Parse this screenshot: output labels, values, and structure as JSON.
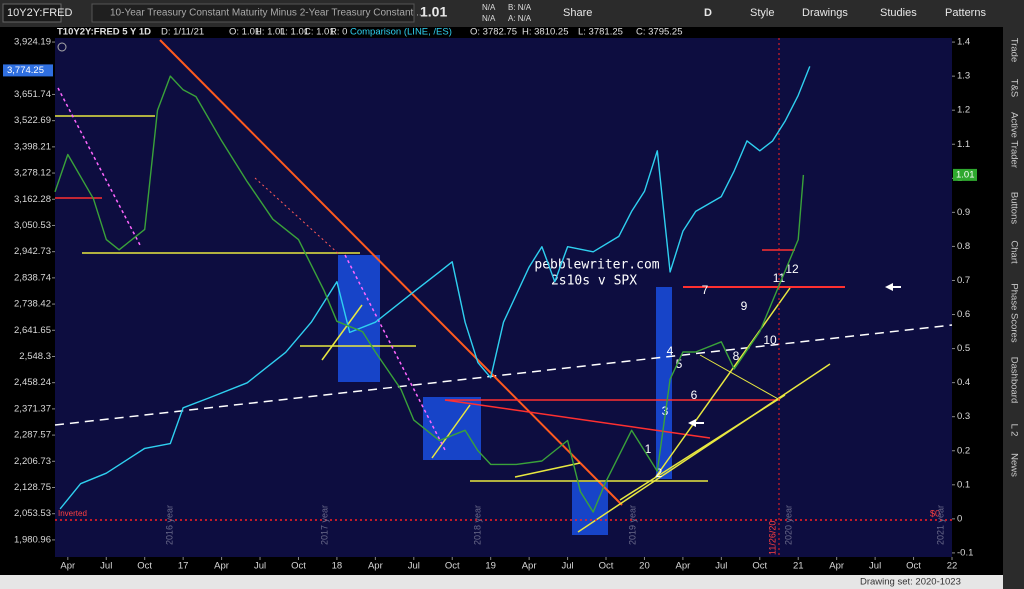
{
  "toolbar": {
    "symbol": "10Y2Y:FRED",
    "description": "10-Year Treasury Constant Maturity Minus 2-Year Treasury Constant ...",
    "price": "1.01",
    "quote": [
      "N/A",
      "N/A",
      "B: N/A",
      "A: N/A"
    ],
    "buttons": [
      "Share",
      "D",
      "Style",
      "Drawings",
      "Studies",
      "Patterns"
    ]
  },
  "chart_header": {
    "symbol": "T10Y2Y:FRED 5 Y 1D",
    "fields": [
      "D: 1/11/21",
      "O: 1.01",
      "H: 1.01",
      "L: 1.01",
      "C: 1.01",
      "R: 0"
    ],
    "comparison": "Comparison (LINE, /ES)",
    "comparison_fields": [
      "O: 3782.75",
      "H: 3810.25",
      "L: 3781.25",
      "C: 3795.25"
    ]
  },
  "sidebar": [
    "Trade",
    "T&S",
    "Active Trader",
    "Buttons",
    "Chart",
    "Phase Scores",
    "Dashboard",
    "L 2",
    "News"
  ],
  "footer": "Drawing set: 2020-1023",
  "chart_data": {
    "type": "line",
    "y_scale": "log",
    "xlim": [
      2,
      72
    ],
    "xticks": [
      {
        "value": 3,
        "label": "Apr"
      },
      {
        "value": 6,
        "label": "Jul"
      },
      {
        "value": 9,
        "label": "Oct"
      },
      {
        "value": 12,
        "label": "17"
      },
      {
        "value": 15,
        "label": "Apr"
      },
      {
        "value": 18,
        "label": "Jul"
      },
      {
        "value": 21,
        "label": "Oct"
      },
      {
        "value": 24,
        "label": "18"
      },
      {
        "value": 27,
        "label": "Apr"
      },
      {
        "value": 30,
        "label": "Jul"
      },
      {
        "value": 33,
        "label": "Oct"
      },
      {
        "value": 36,
        "label": "19"
      },
      {
        "value": 39,
        "label": "Apr"
      },
      {
        "value": 42,
        "label": "Jul"
      },
      {
        "value": 45,
        "label": "Oct"
      },
      {
        "value": 48,
        "label": "20"
      },
      {
        "value": 51,
        "label": "Apr"
      },
      {
        "value": 54,
        "label": "Jul"
      },
      {
        "value": 57,
        "label": "Oct"
      },
      {
        "value": 60,
        "label": "21"
      },
      {
        "value": 63,
        "label": "Apr"
      },
      {
        "value": 66,
        "label": "Jul"
      },
      {
        "value": 69,
        "label": "Oct"
      },
      {
        "value": 72,
        "label": "22"
      }
    ],
    "ylim": [
      1935,
      3946
    ],
    "yticks": [
      {
        "value": 3924.19,
        "label": "3,924.19"
      },
      {
        "value": 3651.74,
        "label": "3,651.74"
      },
      {
        "value": 3522.69,
        "label": "3,522.69"
      },
      {
        "value": 3398.21,
        "label": "3,398.21"
      },
      {
        "value": 3278.12,
        "label": "3,278.12"
      },
      {
        "value": 3162.28,
        "label": "3,162.28"
      },
      {
        "value": 3050.53,
        "label": "3,050.53"
      },
      {
        "value": 2942.73,
        "label": "2,942.73"
      },
      {
        "value": 2838.74,
        "label": "2,838.74"
      },
      {
        "value": 2738.42,
        "label": "2,738.42"
      },
      {
        "value": 2641.65,
        "label": "2,641.65"
      },
      {
        "value": 2548.3,
        "label": "2,548.3"
      },
      {
        "value": 2458.24,
        "label": "2,458.24"
      },
      {
        "value": 2371.37,
        "label": "2,371.37"
      },
      {
        "value": 2287.57,
        "label": "2,287.57"
      },
      {
        "value": 2206.73,
        "label": "2,206.73"
      },
      {
        "value": 2128.75,
        "label": "2,128.75"
      },
      {
        "value": 2053.53,
        "label": "2,053.53"
      },
      {
        "value": 1980.96,
        "label": "1,980.96"
      }
    ],
    "y2lim": [
      -0.112,
      1.412
    ],
    "y2ticks": [
      1.4,
      1.3,
      1.2,
      1.1,
      1,
      0.9,
      0.8,
      0.7,
      0.6,
      0.5,
      0.4,
      0.3,
      0.2,
      0.1,
      0,
      -0.1
    ],
    "current_labels": [
      {
        "value": 3774.25,
        "label": "3,774.25",
        "axis": "y",
        "color": "#2f6fe0"
      },
      {
        "value": 1.01,
        "label": "1.01",
        "axis": "y2",
        "color": "#2ea82e"
      }
    ],
    "series": [
      {
        "color": "#2fd0f0",
        "axis": "y",
        "x": [
          2.4,
          4,
          6,
          9,
          11,
          12,
          14,
          17,
          20,
          22,
          24,
          25,
          27,
          30,
          32,
          33,
          34,
          35,
          36,
          37,
          39,
          40,
          41,
          42,
          44,
          46,
          47,
          48,
          49,
          50,
          51,
          52,
          54,
          55,
          56,
          57,
          58,
          59,
          60,
          60.9
        ],
        "values": [
          2067,
          2140,
          2171,
          2246,
          2261,
          2375,
          2407,
          2458,
          2563,
          2671,
          2824,
          2634,
          2671,
          2785,
          2862,
          2902,
          2671,
          2527,
          2475,
          2671,
          2881,
          2963,
          2824,
          2963,
          2942,
          3005,
          3110,
          3197,
          3380,
          2862,
          3026,
          3110,
          3174,
          3288,
          3426,
          3380,
          3426,
          3523,
          3647,
          3795
        ]
      },
      {
        "color": "#3aa23a",
        "axis": "y2",
        "x": [
          2,
          3,
          5,
          6,
          7,
          9,
          10,
          11,
          12,
          13,
          15,
          17,
          19,
          21,
          23,
          24,
          26,
          27,
          29,
          30,
          32,
          34,
          35,
          36,
          38,
          40,
          42,
          43,
          44,
          45,
          47,
          48,
          49,
          50,
          51,
          52,
          54,
          55,
          57,
          58,
          59,
          60,
          60.4
        ],
        "values": [
          0.96,
          1.07,
          0.94,
          0.82,
          0.79,
          0.85,
          1.2,
          1.3,
          1.26,
          1.24,
          1.11,
          0.99,
          0.88,
          0.82,
          0.67,
          0.58,
          0.55,
          0.49,
          0.38,
          0.29,
          0.23,
          0.26,
          0.2,
          0.16,
          0.16,
          0.17,
          0.23,
          0.08,
          0.02,
          0.11,
          0.26,
          0.2,
          0.14,
          0.41,
          0.49,
          0.49,
          0.52,
          0.44,
          0.55,
          0.64,
          0.73,
          0.82,
          1.01
        ]
      }
    ],
    "annotations": {
      "site": "pebblewriter.com",
      "subtitle": "2s10s v SPX",
      "waves": [
        "1",
        "2",
        "3",
        "4",
        "5",
        "6",
        "7",
        "8",
        "9",
        "10",
        "11",
        "12"
      ],
      "inverted": "Inverted",
      "zero": "$0",
      "date_marker": "11/26/20",
      "years": [
        "2016 year",
        "2017 year",
        "2018 year",
        "2019 year",
        "2020 year",
        "2021 year"
      ]
    }
  }
}
